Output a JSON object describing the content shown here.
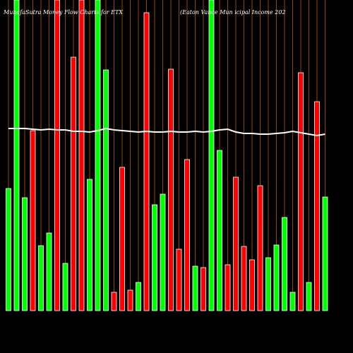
{
  "chart_data": {
    "type": "bar",
    "title": "MunafaSutra  Money Flow  Charts for ETX",
    "subtitle": "(Eaton Vance  Mun      icipal Income  202",
    "categories": [
      null,
      null,
      null,
      null,
      null,
      null,
      null,
      null,
      null,
      null,
      null,
      null,
      null,
      null,
      null,
      null,
      null,
      null,
      null,
      null,
      null,
      null,
      null,
      null,
      null,
      null,
      null,
      null,
      null,
      null,
      null,
      null,
      null,
      null,
      null,
      null,
      null,
      null,
      null,
      null
    ],
    "values": [
      173,
      440,
      160,
      255,
      92,
      110,
      440,
      67,
      359,
      440,
      186,
      440,
      341,
      26,
      203,
      29,
      40,
      422,
      150,
      165,
      342,
      87,
      214,
      63,
      61,
      440,
      227,
      65,
      189,
      91,
      72,
      177,
      75,
      93,
      132,
      26,
      337,
      40,
      296,
      161
    ],
    "colors": [
      "#00ff00",
      "#00ff00",
      "#00ff00",
      "#ff0000",
      "#00ff00",
      "#00ff00",
      "#ff0000",
      "#00ff00",
      "#ff0000",
      "#ff0000",
      "#00ff00",
      "#00ff00",
      "#00ff00",
      "#ff0000",
      "#ff0000",
      "#ff0000",
      "#00ff00",
      "#ff0000",
      "#00ff00",
      "#00ff00",
      "#ff0000",
      "#ff0000",
      "#ff0000",
      "#00ff00",
      "#ff0000",
      "#00ff00",
      "#00ff00",
      "#ff0000",
      "#ff0000",
      "#ff0000",
      "#ff0000",
      "#ff0000",
      "#00ff00",
      "#00ff00",
      "#00ff00",
      "#00ff00",
      "#ff0000",
      "#00ff00",
      "#ff0000",
      "#00ff00"
    ],
    "line_values": [
      258,
      258,
      258,
      257,
      256,
      257,
      256,
      256,
      254,
      254,
      253,
      255,
      258,
      256,
      255,
      254,
      253,
      254,
      253,
      253,
      254,
      253,
      253,
      254,
      253,
      254,
      256,
      257,
      253,
      251,
      251,
      250,
      250,
      251,
      252,
      254,
      252,
      250,
      248,
      250
    ],
    "line_color": "#ffffff",
    "ylim": [
      0,
      440
    ]
  }
}
